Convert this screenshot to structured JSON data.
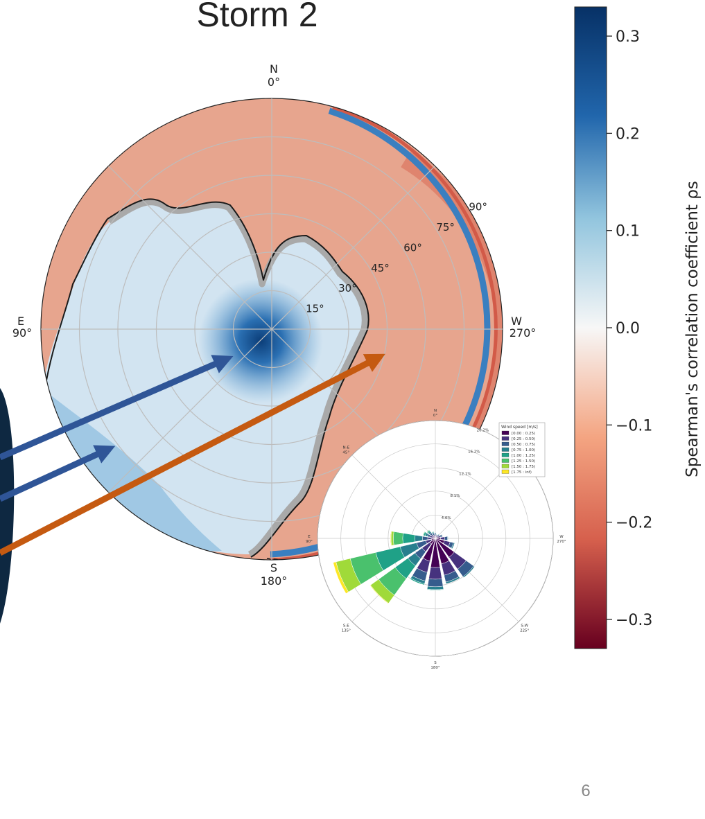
{
  "slide": {
    "title": "Storm 2",
    "page_number": "6"
  },
  "chart_data": [
    {
      "type": "heatmap",
      "projection": "polar",
      "directions": [
        {
          "name": "N",
          "deg": "0°"
        },
        {
          "name": "E",
          "deg": "90°"
        },
        {
          "name": "S",
          "deg": "180°"
        },
        {
          "name": "W",
          "deg": "270°"
        }
      ],
      "ring_labels": [
        "15°",
        "30°",
        "45°",
        "60°",
        "75°",
        "90°"
      ],
      "grid": true,
      "colorbar": {
        "label": "Spearman's correlation coefficient ρs",
        "ticks": [
          "0.3",
          "0.2",
          "0.1",
          "0.0",
          "−0.1",
          "−0.2",
          "−0.3"
        ],
        "range": [
          -0.33,
          0.33
        ],
        "colormap": "RdBu"
      },
      "arrow_colors": [
        "#2f5597",
        "#2f5597",
        "#c55a11"
      ]
    },
    {
      "type": "bar",
      "projection": "polar",
      "directions": [
        {
          "name": "N",
          "deg": "0°"
        },
        {
          "name": "N-E",
          "deg": "45°"
        },
        {
          "name": "E",
          "deg": "90°"
        },
        {
          "name": "S-E",
          "deg": "135°"
        },
        {
          "name": "S",
          "deg": "180°"
        },
        {
          "name": "S-W",
          "deg": "225°"
        },
        {
          "name": "W",
          "deg": "270°"
        }
      ],
      "radial_ticks": [
        "4.0%",
        "8.1%",
        "12.1%",
        "16.2%",
        "20.2%"
      ],
      "rmax": 20.2,
      "legend": {
        "title": "Wind speed [m/s]",
        "position": "top-right",
        "bins": [
          "[0.00 : 0.25)",
          "[0.25 : 0.50)",
          "[0.50 : 0.75)",
          "[0.75 : 1.00)",
          "[1.00 : 1.25)",
          "[1.25 : 1.50)",
          "[1.50 : 1.75)",
          "[1.75 : inf)"
        ],
        "colors": [
          "#440154",
          "#46327e",
          "#365c8d",
          "#277f8e",
          "#1fa187",
          "#4ac16d",
          "#a0da39",
          "#fde725"
        ]
      },
      "directions_deg": [
        0,
        22.5,
        45,
        67.5,
        90,
        112.5,
        135,
        157.5,
        180,
        202.5,
        225,
        247.5,
        270,
        292.5,
        315,
        337.5
      ],
      "cumulative_percent": [
        [
          0.3,
          0.6,
          0.9,
          1.0,
          1.0,
          1.0,
          1.0,
          1.0
        ],
        [
          0.3,
          0.6,
          0.9,
          1.1,
          1.2,
          1.2,
          1.2,
          1.2
        ],
        [
          0.4,
          0.8,
          1.2,
          1.5,
          1.7,
          1.8,
          1.8,
          1.8
        ],
        [
          0.5,
          1.0,
          1.4,
          1.8,
          2.1,
          2.2,
          2.2,
          2.2
        ],
        [
          0.6,
          1.3,
          2.2,
          3.5,
          5.6,
          7.2,
          7.6,
          7.7
        ],
        [
          0.7,
          1.7,
          3.3,
          6.2,
          10.5,
          15.0,
          17.5,
          18.0
        ],
        [
          1.2,
          2.8,
          4.3,
          5.8,
          8.5,
          12.0,
          13.7,
          13.8
        ],
        [
          4.0,
          6.0,
          7.5,
          8.0,
          8.2,
          8.2,
          8.2,
          8.2
        ],
        [
          5.0,
          7.0,
          8.3,
          8.8,
          8.9,
          8.9,
          8.9,
          8.9
        ],
        [
          4.5,
          6.5,
          7.7,
          8.0,
          8.0,
          8.0,
          8.0,
          8.0
        ],
        [
          4.0,
          6.5,
          8.1,
          8.3,
          8.3,
          8.3,
          8.3,
          8.3
        ],
        [
          1.6,
          2.6,
          3.2,
          3.4,
          3.4,
          3.4,
          3.4,
          3.4
        ],
        [
          0.9,
          1.6,
          2.1,
          2.2,
          2.2,
          2.2,
          2.2,
          2.2
        ],
        [
          0.5,
          0.9,
          1.2,
          1.3,
          1.3,
          1.3,
          1.3,
          1.3
        ],
        [
          0.3,
          0.6,
          0.8,
          0.9,
          0.9,
          0.9,
          0.9,
          0.9
        ],
        [
          0.3,
          0.5,
          0.6,
          0.7,
          0.7,
          0.7,
          0.7,
          0.7
        ]
      ]
    }
  ]
}
